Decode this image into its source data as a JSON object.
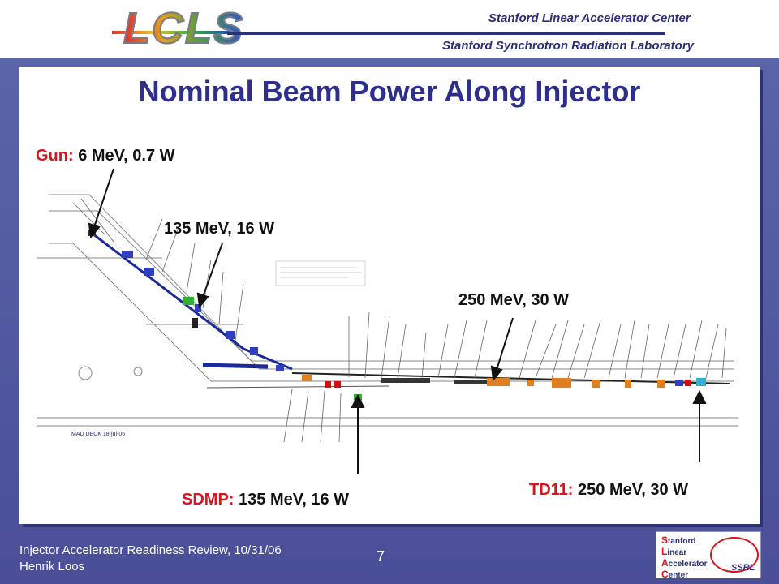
{
  "header": {
    "logo": "LCLS",
    "line1": "Stanford Linear Accelerator Center",
    "line2": "Stanford Synchrotron Radiation Laboratory"
  },
  "title": "Nominal Beam Power Along Injector",
  "labels": {
    "gun": {
      "name": "Gun:",
      "value": "6 MeV, 0.7 W"
    },
    "l0": {
      "value": "135 MeV, 16 W"
    },
    "l1": {
      "value": "250 MeV, 30 W"
    },
    "sdmp": {
      "name": "SDMP:",
      "value": "135 MeV, 16 W"
    },
    "td11": {
      "name": "TD11:",
      "value": "250 MeV, 30 W"
    }
  },
  "diagram": {
    "deck_label": "MAD DECK 18-jul-06"
  },
  "footer": {
    "line1": "Injector Accelerator Readiness Review, 10/31/06",
    "line2": "Henrik Loos",
    "page": "7"
  },
  "corner_logo": {
    "lines": [
      "Stanford",
      "Linear",
      "Accelerator",
      "Center"
    ],
    "ssrl": "SSRL"
  },
  "colors": {
    "title": "#2e2f8c",
    "red_label": "#d8141e",
    "background": "#4a4f98"
  }
}
